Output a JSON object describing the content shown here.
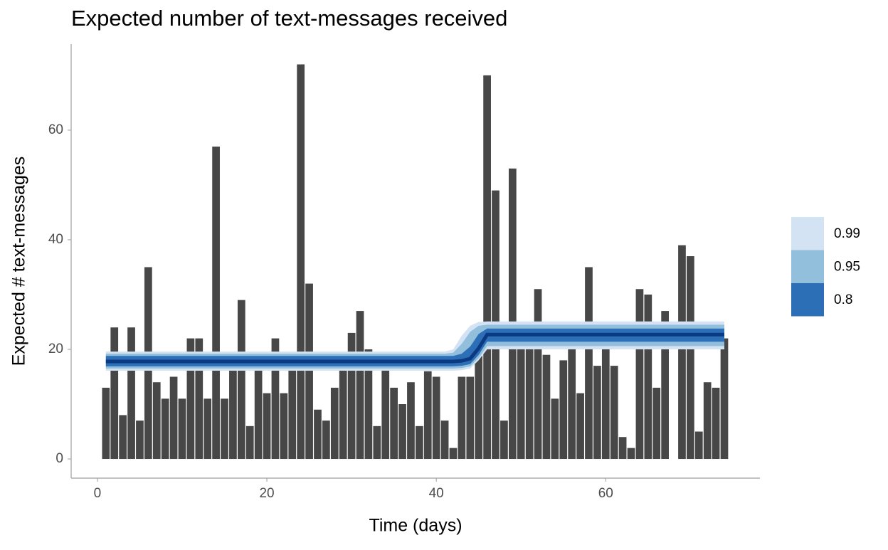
{
  "chart_data": {
    "type": "bar",
    "title": "Expected number of text-messages received",
    "x_label": "Time (days)",
    "y_label": "Expected # text-messages",
    "x": [
      1,
      2,
      3,
      4,
      5,
      6,
      7,
      8,
      9,
      10,
      11,
      12,
      13,
      14,
      15,
      16,
      17,
      18,
      19,
      20,
      21,
      22,
      23,
      24,
      25,
      26,
      27,
      28,
      29,
      30,
      31,
      32,
      33,
      34,
      35,
      36,
      37,
      38,
      39,
      40,
      41,
      42,
      43,
      44,
      45,
      46,
      47,
      48,
      49,
      50,
      51,
      52,
      53,
      54,
      55,
      56,
      57,
      58,
      59,
      60,
      61,
      62,
      63,
      64,
      65,
      66,
      67,
      68,
      69,
      70,
      71,
      72,
      73,
      74
    ],
    "values": [
      13,
      24,
      8,
      24,
      7,
      35,
      14,
      11,
      15,
      11,
      22,
      22,
      11,
      57,
      11,
      19,
      29,
      6,
      19,
      12,
      22,
      12,
      18,
      72,
      32,
      9,
      7,
      13,
      19,
      23,
      27,
      20,
      6,
      17,
      13,
      10,
      14,
      6,
      16,
      15,
      7,
      2,
      15,
      15,
      19,
      70,
      49,
      7,
      53,
      22,
      21,
      31,
      19,
      11,
      18,
      20,
      12,
      35,
      17,
      23,
      17,
      4,
      2,
      31,
      30,
      13,
      27,
      0,
      39,
      37,
      5,
      14,
      13,
      22
    ],
    "color": "#474747",
    "xlim": [
      -3.1,
      78.2
    ],
    "ylim": [
      -3.5,
      75.7
    ],
    "xticks": [
      0,
      20,
      40,
      60
    ],
    "yticks": [
      0,
      20,
      40,
      60
    ],
    "band_x": [
      1,
      41,
      42,
      43,
      44,
      45,
      46,
      74
    ],
    "median": {
      "color": "#0b3a82",
      "values": [
        17.8,
        17.8,
        17.8,
        17.9,
        18.3,
        20.2,
        22.7,
        22.7
      ]
    },
    "bands": [
      {
        "name": "0.99",
        "color": "#d3e3f3",
        "lower": [
          16.1,
          16.1,
          16.1,
          16.2,
          16.5,
          18.0,
          20.0,
          20.0
        ],
        "upper": [
          19.6,
          19.6,
          20.0,
          22.5,
          24.3,
          25.0,
          25.1,
          25.1
        ]
      },
      {
        "name": "0.95",
        "color": "#92bfdc",
        "lower": [
          16.5,
          16.5,
          16.5,
          16.6,
          16.9,
          18.4,
          20.6,
          20.6
        ],
        "upper": [
          19.2,
          19.2,
          19.4,
          21.0,
          23.2,
          24.3,
          24.5,
          24.5
        ]
      },
      {
        "name": "0.8",
        "color": "#2d6fb6",
        "lower": [
          16.9,
          16.9,
          16.9,
          17.0,
          17.3,
          19.0,
          21.4,
          21.4
        ],
        "upper": [
          18.8,
          18.8,
          18.8,
          19.2,
          20.5,
          22.8,
          23.8,
          23.8
        ]
      }
    ]
  }
}
